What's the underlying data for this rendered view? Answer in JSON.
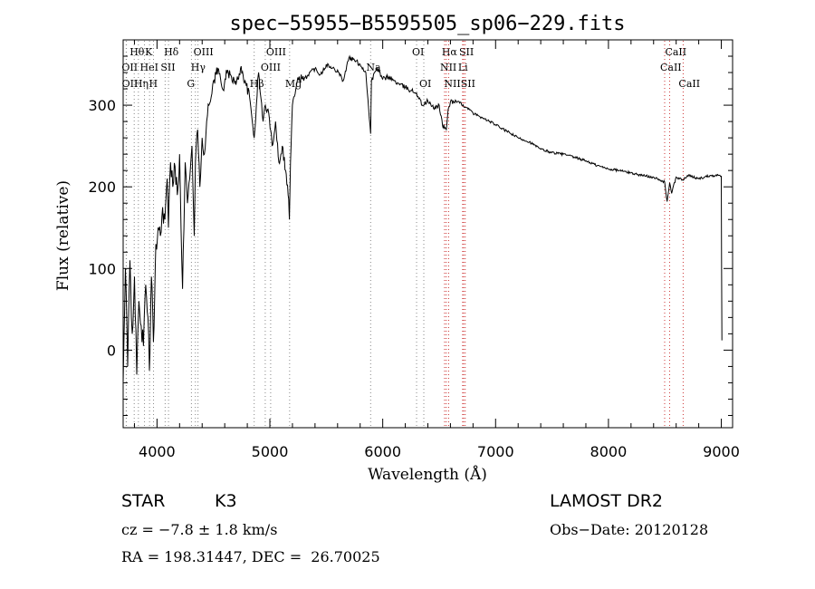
{
  "chart_data": {
    "type": "line",
    "title": "spec−55955−B5595505_sp06−229.fits",
    "xlabel": "Wavelength (Å)",
    "ylabel": "Flux (relative)",
    "xlim": [
      3700,
      9100
    ],
    "ylim": [
      -95,
      380
    ],
    "x_ticks": [
      4000,
      5000,
      6000,
      7000,
      8000,
      9000
    ],
    "y_ticks": [
      0,
      100,
      200,
      300
    ],
    "grid": false,
    "series": [
      {
        "color": "#000000",
        "x": [
          3700,
          3720,
          3740,
          3760,
          3780,
          3800,
          3820,
          3840,
          3860,
          3880,
          3900,
          3920,
          3933,
          3950,
          3968,
          3990,
          4010,
          4030,
          4050,
          4070,
          4090,
          4101,
          4120,
          4140,
          4160,
          4180,
          4200,
          4226,
          4250,
          4270,
          4290,
          4310,
          4330,
          4340,
          4360,
          4380,
          4400,
          4420,
          4440,
          4460,
          4480,
          4500,
          4540,
          4580,
          4620,
          4660,
          4700,
          4740,
          4780,
          4820,
          4861,
          4880,
          4900,
          4920,
          4940,
          4960,
          4990,
          5020,
          5050,
          5080,
          5110,
          5140,
          5167,
          5173,
          5183,
          5200,
          5230,
          5260,
          5300,
          5350,
          5400,
          5450,
          5500,
          5550,
          5600,
          5650,
          5700,
          5750,
          5800,
          5850,
          5893,
          5900,
          5950,
          6000,
          6050,
          6100,
          6150,
          6200,
          6250,
          6300,
          6350,
          6400,
          6450,
          6500,
          6530,
          6563,
          6580,
          6600,
          6650,
          6700,
          6750,
          6800,
          6850,
          6900,
          6950,
          7000,
          7100,
          7200,
          7300,
          7400,
          7500,
          7600,
          7700,
          7800,
          7900,
          8000,
          8100,
          8200,
          8300,
          8400,
          8450,
          8498,
          8520,
          8542,
          8560,
          8600,
          8662,
          8700,
          8800,
          8900,
          8980,
          9000,
          9005
        ],
        "y": [
          -40,
          100,
          -20,
          110,
          20,
          90,
          -30,
          60,
          30,
          5,
          80,
          40,
          -25,
          90,
          10,
          130,
          150,
          140,
          175,
          160,
          210,
          150,
          230,
          200,
          225,
          190,
          240,
          75,
          230,
          180,
          210,
          250,
          140,
          230,
          270,
          200,
          260,
          240,
          280,
          300,
          310,
          330,
          345,
          320,
          340,
          335,
          325,
          345,
          330,
          310,
          260,
          300,
          340,
          310,
          280,
          300,
          290,
          250,
          280,
          230,
          250,
          220,
          185,
          160,
          230,
          300,
          320,
          335,
          330,
          340,
          345,
          338,
          350,
          345,
          343,
          330,
          358,
          355,
          350,
          340,
          265,
          330,
          345,
          332,
          335,
          330,
          325,
          322,
          318,
          315,
          300,
          305,
          296,
          300,
          275,
          270,
          295,
          304,
          305,
          300,
          297,
          290,
          287,
          283,
          280,
          276,
          268,
          260,
          255,
          246,
          242,
          240,
          236,
          232,
          226,
          222,
          220,
          217,
          214,
          212,
          208,
          206,
          182,
          205,
          192,
          212,
          208,
          214,
          210,
          214,
          214,
          213,
          12
        ]
      }
    ],
    "line_marks": [
      {
        "name": "Hθ",
        "wavelength": 3798,
        "row": 1,
        "color": "#888888"
      },
      {
        "name": "OII",
        "wavelength": 3727,
        "row": 2,
        "color": "#888888"
      },
      {
        "name": "OII",
        "wavelength": 3729,
        "row": 3,
        "color": "#888888"
      },
      {
        "name": "Hη",
        "wavelength": 3835,
        "row": 3,
        "color": "#888888"
      },
      {
        "name": "K",
        "wavelength": 3934,
        "row": 1,
        "color": "#888888"
      },
      {
        "name": "H",
        "wavelength": 3969,
        "row": 3,
        "color": "#888888"
      },
      {
        "name": "HeI",
        "wavelength": 3889,
        "row": 2,
        "color": "#888888"
      },
      {
        "name": "SII",
        "wavelength": 4072,
        "row": 2,
        "color": "#888888"
      },
      {
        "name": "Hδ",
        "wavelength": 4102,
        "row": 1,
        "color": "#888888"
      },
      {
        "name": "OIII",
        "wavelength": 4363,
        "row": 1,
        "color": "#888888"
      },
      {
        "name": "Hγ",
        "wavelength": 4340,
        "row": 2,
        "color": "#888888"
      },
      {
        "name": "G",
        "wavelength": 4305,
        "row": 3,
        "color": "#888888"
      },
      {
        "name": "OIII",
        "wavelength": 5007,
        "row": 1,
        "color": "#888888"
      },
      {
        "name": "OIII",
        "wavelength": 4959,
        "row": 2,
        "color": "#888888"
      },
      {
        "name": "Hβ",
        "wavelength": 4861,
        "row": 3,
        "color": "#888888"
      },
      {
        "name": "Mg",
        "wavelength": 5175,
        "row": 3,
        "color": "#888888"
      },
      {
        "name": "Na",
        "wavelength": 5893,
        "row": 2,
        "color": "#888888"
      },
      {
        "name": "OI",
        "wavelength": 6300,
        "row": 1,
        "color": "#888888"
      },
      {
        "name": "OI",
        "wavelength": 6364,
        "row": 3,
        "color": "#888888"
      },
      {
        "name": "Hα",
        "wavelength": 6563,
        "row": 1,
        "color": "#cc3333"
      },
      {
        "name": "SII",
        "wavelength": 6717,
        "row": 1,
        "color": "#cc3333"
      },
      {
        "name": "NII",
        "wavelength": 6548,
        "row": 2,
        "color": "#cc3333"
      },
      {
        "name": "Li",
        "wavelength": 6708,
        "row": 2,
        "color": "#cc3333"
      },
      {
        "name": "NII",
        "wavelength": 6584,
        "row": 3,
        "color": "#cc3333"
      },
      {
        "name": "SII",
        "wavelength": 6731,
        "row": 3,
        "color": "#cc3333"
      },
      {
        "name": "CaII",
        "wavelength": 8542,
        "row": 1,
        "color": "#cc3333"
      },
      {
        "name": "CaII",
        "wavelength": 8498,
        "row": 2,
        "color": "#cc3333"
      },
      {
        "name": "CaII",
        "wavelength": 8662,
        "row": 3,
        "color": "#cc3333"
      }
    ]
  },
  "info": {
    "class": "STAR",
    "subclass": "K3",
    "cz": "cz = −7.8 ± 1.8 km/s",
    "coords": "RA = 198.31447, DEC =  26.70025",
    "survey": "LAMOST DR2",
    "obs_date": "Obs−Date: 20120128"
  }
}
